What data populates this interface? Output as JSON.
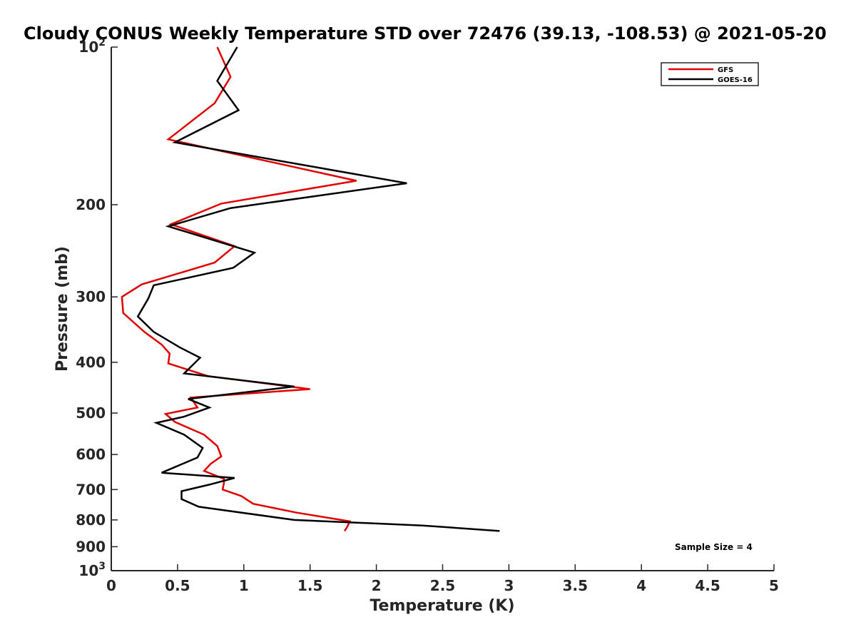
{
  "chart_data": {
    "type": "line",
    "title": "Cloudy CONUS Weekly Temperature STD over 72476 (39.13, -108.53) @ 2021-05-20",
    "xlabel": "Temperature (K)",
    "ylabel": "Pressure (mb)",
    "xlim": [
      0,
      5
    ],
    "ylim": [
      100,
      1000
    ],
    "y_scale": "log",
    "y_reversed": true,
    "grid": false,
    "legend_position": "top-right",
    "x_ticks": [
      0,
      0.5,
      1,
      1.5,
      2,
      2.5,
      3,
      3.5,
      4,
      4.5,
      5
    ],
    "x_tick_labels": [
      "0",
      "0.5",
      "1",
      "1.5",
      "2",
      "2.5",
      "3",
      "3.5",
      "4",
      "4.5",
      "5"
    ],
    "y_ticks": [
      100,
      200,
      300,
      400,
      500,
      600,
      700,
      800,
      900,
      1000
    ],
    "y_tick_labels": [
      "10^2",
      "200",
      "300",
      "400",
      "500",
      "600",
      "700",
      "800",
      "900",
      "10^3"
    ],
    "annotation": "Sample Size = 4",
    "series": [
      {
        "name": "GFS",
        "color": "#e00000",
        "points": [
          [
            0.8,
            100
          ],
          [
            0.9,
            114
          ],
          [
            0.78,
            128
          ],
          [
            0.43,
            150
          ],
          [
            1.85,
            180
          ],
          [
            0.83,
            199
          ],
          [
            0.45,
            218
          ],
          [
            0.93,
            240
          ],
          [
            0.78,
            258
          ],
          [
            0.23,
            284
          ],
          [
            0.08,
            300
          ],
          [
            0.09,
            322
          ],
          [
            0.25,
            350
          ],
          [
            0.38,
            370
          ],
          [
            0.44,
            385
          ],
          [
            0.43,
            402
          ],
          [
            0.73,
            425
          ],
          [
            1.5,
            450
          ],
          [
            0.6,
            467
          ],
          [
            0.65,
            488
          ],
          [
            0.41,
            502
          ],
          [
            0.48,
            520
          ],
          [
            0.7,
            550
          ],
          [
            0.8,
            578
          ],
          [
            0.83,
            605
          ],
          [
            0.75,
            625
          ],
          [
            0.7,
            645
          ],
          [
            0.85,
            668
          ],
          [
            0.85,
            680
          ],
          [
            0.84,
            700
          ],
          [
            0.98,
            720
          ],
          [
            1.07,
            745
          ],
          [
            1.4,
            775
          ],
          [
            1.8,
            805
          ],
          [
            1.78,
            825
          ],
          [
            1.76,
            840
          ]
        ]
      },
      {
        "name": "GOES-16",
        "color": "#000000",
        "points": [
          [
            0.95,
            100
          ],
          [
            0.8,
            116
          ],
          [
            0.96,
            132
          ],
          [
            0.48,
            152
          ],
          [
            2.23,
            182
          ],
          [
            0.9,
            203
          ],
          [
            0.43,
            220
          ],
          [
            1.08,
            247
          ],
          [
            0.92,
            264
          ],
          [
            0.32,
            285
          ],
          [
            0.28,
            302
          ],
          [
            0.2,
            327
          ],
          [
            0.32,
            350
          ],
          [
            0.52,
            375
          ],
          [
            0.67,
            392
          ],
          [
            0.55,
            420
          ],
          [
            1.38,
            445
          ],
          [
            0.58,
            470
          ],
          [
            0.74,
            488
          ],
          [
            0.55,
            508
          ],
          [
            0.34,
            522
          ],
          [
            0.55,
            550
          ],
          [
            0.69,
            583
          ],
          [
            0.65,
            608
          ],
          [
            0.38,
            650
          ],
          [
            0.93,
            665
          ],
          [
            0.74,
            685
          ],
          [
            0.53,
            705
          ],
          [
            0.53,
            730
          ],
          [
            0.66,
            755
          ],
          [
            1.38,
            800
          ],
          [
            2.35,
            820
          ],
          [
            2.93,
            840
          ]
        ]
      }
    ]
  }
}
